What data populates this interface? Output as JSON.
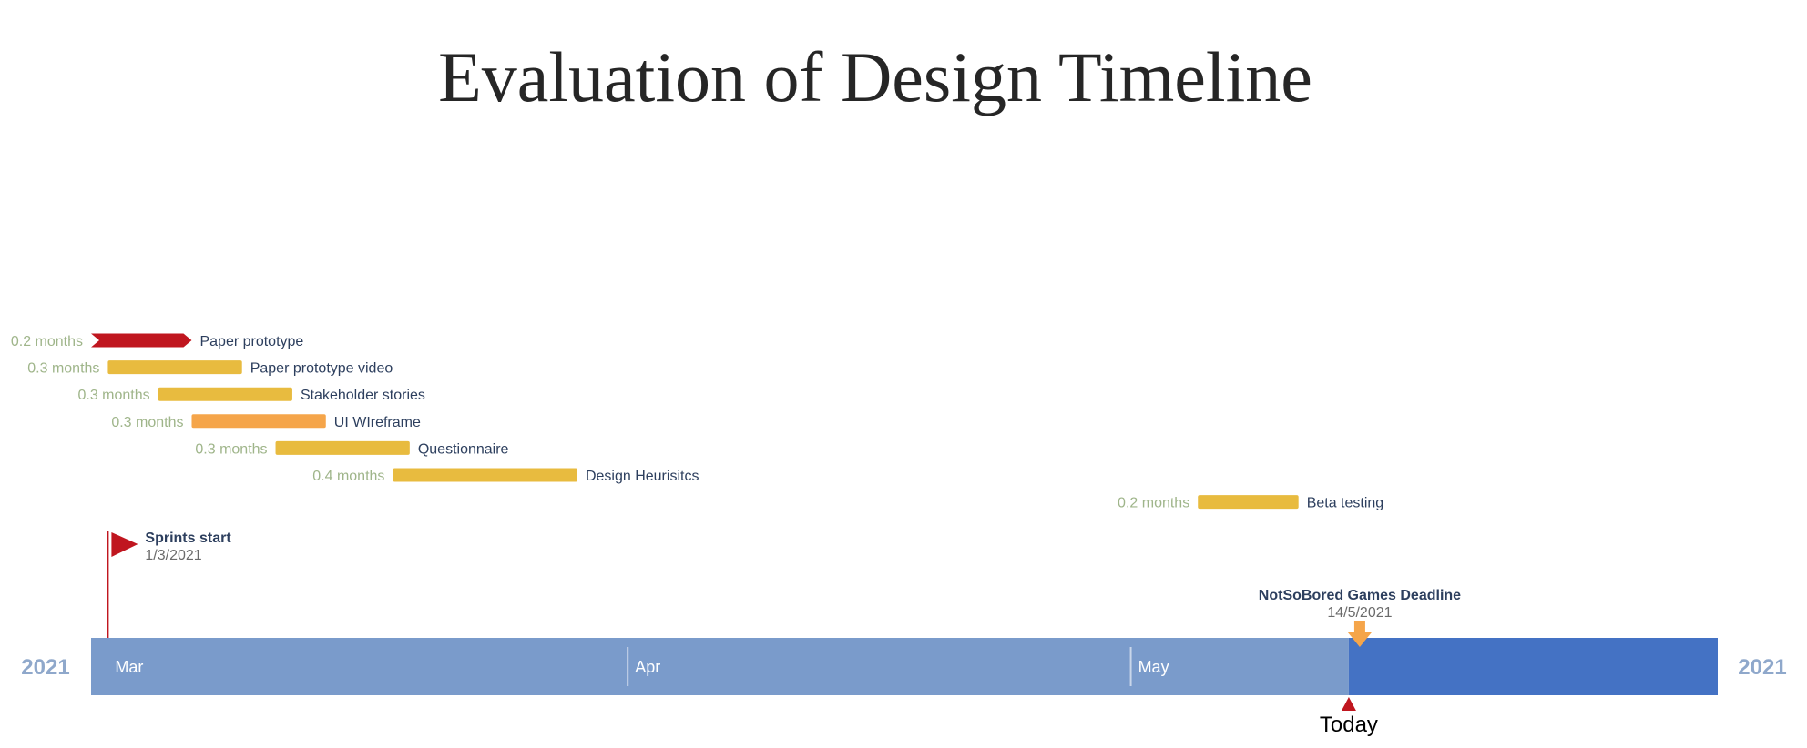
{
  "chart_data": {
    "type": "gantt",
    "title": "Evaluation of Design Timeline",
    "year_label_left": "2021",
    "year_label_right": "2021",
    "months": [
      "Mar",
      "Apr",
      "May"
    ],
    "x_range": [
      "2021-02-28",
      "2021-06-05"
    ],
    "today": "2021-05-14",
    "today_label": "Today",
    "colors": {
      "axis": "#7a9bcb",
      "axis_future": "#4472c4",
      "red": "#c0161f",
      "yellow": "#e8bb3f",
      "orange": "#f5a54a",
      "duration_text": "#9fb58a",
      "label_text": "#2d3f5e"
    },
    "tasks": [
      {
        "name": "Paper prototype",
        "duration": "0.2 months",
        "start": "2021-02-28",
        "end": "2021-03-06",
        "color": "red",
        "style": "chevron"
      },
      {
        "name": "Paper prototype video",
        "duration": "0.3 months",
        "start": "2021-03-01",
        "end": "2021-03-09",
        "color": "yellow",
        "style": "bar"
      },
      {
        "name": "Stakeholder stories",
        "duration": "0.3 months",
        "start": "2021-03-04",
        "end": "2021-03-12",
        "color": "yellow",
        "style": "bar"
      },
      {
        "name": "UI WIreframe",
        "duration": "0.3 months",
        "start": "2021-03-06",
        "end": "2021-03-14",
        "color": "orange",
        "style": "bar"
      },
      {
        "name": "Questionnaire",
        "duration": "0.3 months",
        "start": "2021-03-11",
        "end": "2021-03-19",
        "color": "yellow",
        "style": "bar"
      },
      {
        "name": "Design Heurisitcs",
        "duration": "0.4 months",
        "start": "2021-03-18",
        "end": "2021-03-29",
        "color": "yellow",
        "style": "bar"
      },
      {
        "name": "Beta testing",
        "duration": "0.2 months",
        "start": "2021-05-05",
        "end": "2021-05-11",
        "color": "yellow",
        "style": "bar"
      }
    ],
    "milestones": [
      {
        "name": "Sprints start",
        "date_label": "1/3/2021",
        "date": "2021-03-01",
        "marker": "flag",
        "color": "red"
      },
      {
        "name": "NotSoBored Games Deadline",
        "date_label": "14/5/2021",
        "date": "2021-05-14",
        "marker": "arrow-down",
        "color": "orange"
      }
    ]
  }
}
